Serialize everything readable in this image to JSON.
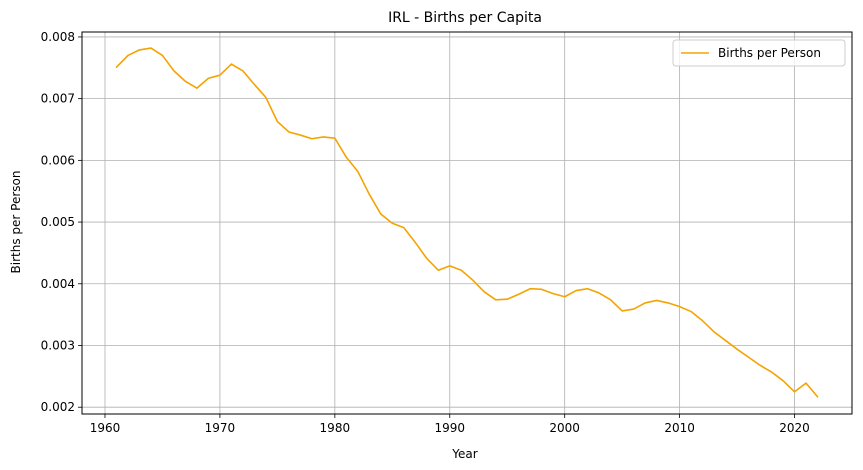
{
  "chart_data": {
    "type": "line",
    "title": "IRL - Births per Capita",
    "xlabel": "Year",
    "ylabel": "Births per Person",
    "xlim": [
      1958,
      2025
    ],
    "ylim": [
      0.00189,
      0.00808
    ],
    "xticks": [
      1960,
      1970,
      1980,
      1990,
      2000,
      2010,
      2020
    ],
    "yticks": [
      0.002,
      0.003,
      0.004,
      0.005,
      0.006,
      0.007,
      0.008
    ],
    "xtick_labels": [
      "1960",
      "1970",
      "1980",
      "1990",
      "2000",
      "2010",
      "2020"
    ],
    "ytick_labels": [
      "0.002",
      "0.003",
      "0.004",
      "0.005",
      "0.006",
      "0.007",
      "0.008"
    ],
    "grid": true,
    "legend_position": "top-right",
    "series": [
      {
        "name": "Births per Person",
        "color": "#f5a300",
        "x": [
          1961,
          1962,
          1963,
          1964,
          1965,
          1966,
          1967,
          1968,
          1969,
          1970,
          1971,
          1972,
          1973,
          1974,
          1975,
          1976,
          1977,
          1978,
          1979,
          1980,
          1981,
          1982,
          1983,
          1984,
          1985,
          1986,
          1987,
          1988,
          1989,
          1990,
          1991,
          1992,
          1993,
          1994,
          1995,
          1996,
          1997,
          1998,
          1999,
          2000,
          2001,
          2002,
          2003,
          2004,
          2005,
          2006,
          2007,
          2008,
          2009,
          2010,
          2011,
          2012,
          2013,
          2014,
          2015,
          2016,
          2017,
          2018,
          2019,
          2020,
          2021,
          2022
        ],
        "values": [
          0.00751,
          0.0077,
          0.00779,
          0.00782,
          0.0077,
          0.00745,
          0.00728,
          0.00717,
          0.00733,
          0.00738,
          0.00756,
          0.00745,
          0.00723,
          0.00702,
          0.00663,
          0.00646,
          0.00641,
          0.00635,
          0.00638,
          0.00636,
          0.00605,
          0.00582,
          0.00545,
          0.00513,
          0.00498,
          0.00491,
          0.00467,
          0.00441,
          0.00422,
          0.00429,
          0.00422,
          0.00406,
          0.00387,
          0.00374,
          0.00375,
          0.00383,
          0.00392,
          0.00391,
          0.00384,
          0.00379,
          0.00389,
          0.00392,
          0.00385,
          0.00374,
          0.00356,
          0.00359,
          0.00369,
          0.00373,
          0.00369,
          0.00363,
          0.00355,
          0.0034,
          0.00322,
          0.00308,
          0.00294,
          0.00281,
          0.00268,
          0.00257,
          0.00243,
          0.00225,
          0.00239,
          0.00217
        ]
      }
    ]
  }
}
